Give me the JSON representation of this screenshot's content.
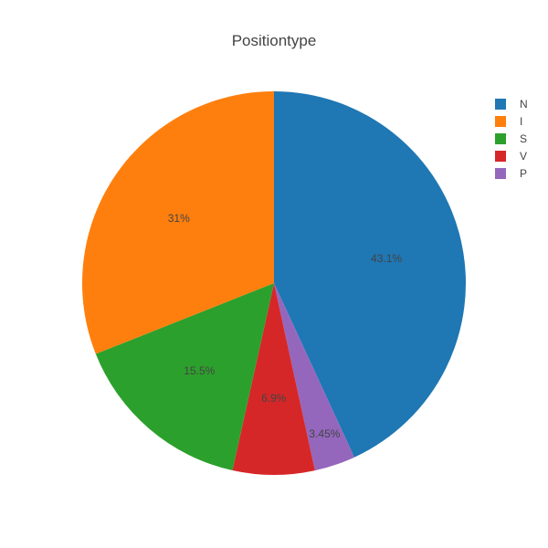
{
  "chart_data": {
    "type": "pie",
    "title": "Positiontype",
    "labels": [
      "N",
      "I",
      "S",
      "V",
      "P"
    ],
    "values": [
      43.1,
      31,
      15.5,
      6.9,
      3.45
    ],
    "value_labels": [
      "43.1%",
      "31%",
      "15.5%",
      "6.9%",
      "3.45%"
    ],
    "colors": [
      "#1f77b4",
      "#ff7f0e",
      "#2ca02c",
      "#d62728",
      "#9467bd"
    ],
    "slice_order": [
      "N",
      "P",
      "V",
      "S",
      "I"
    ],
    "direction": "clockwise from 12 o'clock",
    "legend": {
      "position": "top-right",
      "entries": [
        "N",
        "I",
        "S",
        "V",
        "P"
      ]
    }
  }
}
